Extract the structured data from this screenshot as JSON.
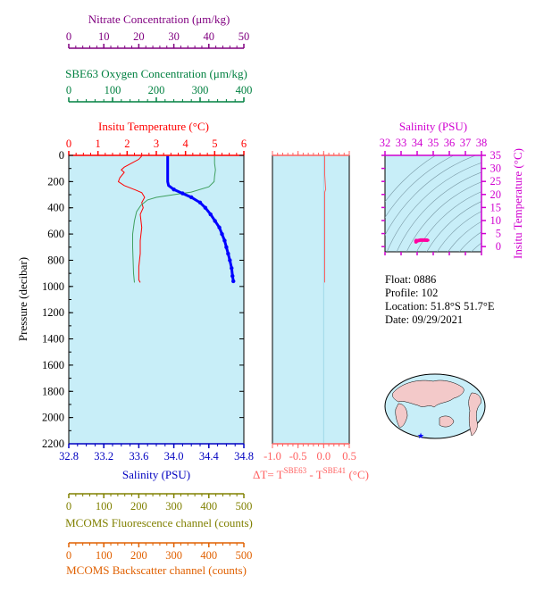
{
  "colors": {
    "nitrate": "#800080",
    "oxygen": "#008040",
    "temperature": "#ff0000",
    "salinity_axis": "#0000c0",
    "fluorescence": "#808000",
    "backscatter": "#e06000",
    "plot_bg": "#c8eef8",
    "ts_axis": "#d000d0",
    "dt_axis": "#ff6060"
  },
  "axes": {
    "nitrate": {
      "label": "Nitrate Concentration (μm/kg)",
      "ticks": [
        "0",
        "10",
        "20",
        "30",
        "40",
        "50"
      ]
    },
    "oxygen": {
      "label": "SBE63 Oxygen Concentration (μm/kg)",
      "ticks": [
        "0",
        "100",
        "200",
        "300",
        "400"
      ]
    },
    "temperature": {
      "label": "Insitu Temperature (°C)",
      "ticks": [
        "0",
        "1",
        "2",
        "3",
        "4",
        "5",
        "6"
      ]
    },
    "salinity": {
      "label": "Salinity (PSU)",
      "ticks": [
        "32.8",
        "33.2",
        "33.6",
        "34.0",
        "34.4",
        "34.8"
      ]
    },
    "pressure": {
      "label": "Pressure (decibar)",
      "ticks": [
        "0",
        "200",
        "400",
        "600",
        "800",
        "1000",
        "1200",
        "1400",
        "1600",
        "1800",
        "2000",
        "2200"
      ]
    },
    "fluorescence": {
      "label": "MCOMS Fluorescence channel (counts)",
      "ticks": [
        "0",
        "100",
        "200",
        "300",
        "400",
        "500"
      ]
    },
    "backscatter": {
      "label": "MCOMS Backscatter channel (counts)",
      "ticks": [
        "0",
        "100",
        "200",
        "300",
        "400",
        "500"
      ]
    },
    "delta_t": {
      "label": "ΔT= T^SBE63 - T^SBE41 (°C)",
      "label_main": "ΔT= T",
      "sup1": "SBE63",
      "label_mid": " - T",
      "sup2": "SBE41",
      "label_end": " (°C)",
      "ticks": [
        "-1.0",
        "-0.5",
        "0.0",
        "0.5"
      ]
    },
    "ts_salinity": {
      "label": "Salinity (PSU)",
      "ticks": [
        "32",
        "33",
        "34",
        "35",
        "36",
        "37",
        "38"
      ]
    },
    "ts_temperature": {
      "label": "Insitu Temperature (°C)",
      "ticks": [
        "35",
        "30",
        "25",
        "20",
        "15",
        "10",
        "5",
        "0"
      ]
    }
  },
  "info": {
    "float": "Float:  0886",
    "profile": "Profile:  102",
    "location": "Location:  51.8°S  51.7°E",
    "date": "Date:  09/29/2021"
  },
  "chart_data": [
    {
      "type": "line",
      "title": "",
      "ylabel": "Pressure (decibar)",
      "ylim": [
        2200,
        0
      ],
      "series": [
        {
          "name": "Insitu Temperature (°C)",
          "axis": "temperature",
          "xlim": [
            0,
            6
          ],
          "points": [
            [
              2.5,
              5
            ],
            [
              2.4,
              30
            ],
            [
              2.15,
              60
            ],
            [
              1.9,
              90
            ],
            [
              1.8,
              110
            ],
            [
              1.9,
              130
            ],
            [
              1.75,
              170
            ],
            [
              1.7,
              200
            ],
            [
              1.9,
              230
            ],
            [
              2.3,
              265
            ],
            [
              2.5,
              285
            ],
            [
              2.6,
              320
            ],
            [
              2.5,
              360
            ],
            [
              2.55,
              400
            ],
            [
              2.45,
              450
            ],
            [
              2.5,
              550
            ],
            [
              2.45,
              650
            ],
            [
              2.45,
              750
            ],
            [
              2.4,
              850
            ],
            [
              2.4,
              950
            ],
            [
              2.45,
              970
            ]
          ]
        },
        {
          "name": "SBE63 Oxygen Concentration (μm/kg)",
          "axis": "oxygen",
          "xlim": [
            0,
            400
          ],
          "points": [
            [
              333,
              5
            ],
            [
              333,
              60
            ],
            [
              335,
              110
            ],
            [
              333,
              160
            ],
            [
              332,
              200
            ],
            [
              320,
              240
            ],
            [
              280,
              280
            ],
            [
              240,
              300
            ],
            [
              200,
              320
            ],
            [
              180,
              340
            ],
            [
              165,
              380
            ],
            [
              155,
              430
            ],
            [
              150,
              500
            ],
            [
              146,
              600
            ],
            [
              146,
              700
            ],
            [
              147,
              800
            ],
            [
              148,
              900
            ],
            [
              150,
              970
            ]
          ]
        },
        {
          "name": "Salinity (PSU)",
          "axis": "salinity",
          "xlim": [
            32.8,
            34.8
          ],
          "marker": "circle",
          "points": [
            [
              33.93,
              5
            ],
            [
              33.93,
              50
            ],
            [
              33.93,
              100
            ],
            [
              33.93,
              150
            ],
            [
              33.93,
              200
            ],
            [
              33.94,
              230
            ],
            [
              34.0,
              260
            ],
            [
              34.1,
              290
            ],
            [
              34.2,
              320
            ],
            [
              34.3,
              360
            ],
            [
              34.36,
              400
            ],
            [
              34.42,
              450
            ],
            [
              34.47,
              500
            ],
            [
              34.52,
              550
            ],
            [
              34.55,
              600
            ],
            [
              34.58,
              650
            ],
            [
              34.6,
              700
            ],
            [
              34.62,
              750
            ],
            [
              34.64,
              800
            ],
            [
              34.66,
              860
            ],
            [
              34.67,
              920
            ],
            [
              34.68,
              960
            ]
          ]
        }
      ]
    },
    {
      "type": "line",
      "ylabel": "Pressure (decibar)",
      "xlabel": "ΔT= TSBE63 - TSBE41 (°C)",
      "xlim": [
        -1.0,
        0.5
      ],
      "ylim": [
        2200,
        0
      ],
      "series": [
        {
          "name": "ΔT",
          "points": [
            [
              0.02,
              5
            ],
            [
              0.02,
              150
            ],
            [
              0.04,
              260
            ],
            [
              0.02,
              280
            ],
            [
              0.02,
              500
            ],
            [
              0.02,
              700
            ],
            [
              0.02,
              970
            ]
          ]
        }
      ]
    },
    {
      "type": "scatter",
      "xlabel": "Salinity (PSU)",
      "ylabel": "Insitu Temperature (°C)",
      "xlim": [
        32,
        38
      ],
      "ylim": [
        -2,
        35
      ],
      "series": [
        {
          "name": "T-S",
          "points": [
            [
              33.93,
              2.5
            ],
            [
              33.93,
              1.8
            ],
            [
              34.0,
              2.2
            ],
            [
              34.2,
              2.5
            ],
            [
              34.4,
              2.5
            ],
            [
              34.6,
              2.45
            ],
            [
              34.68,
              2.4
            ]
          ]
        }
      ]
    }
  ]
}
